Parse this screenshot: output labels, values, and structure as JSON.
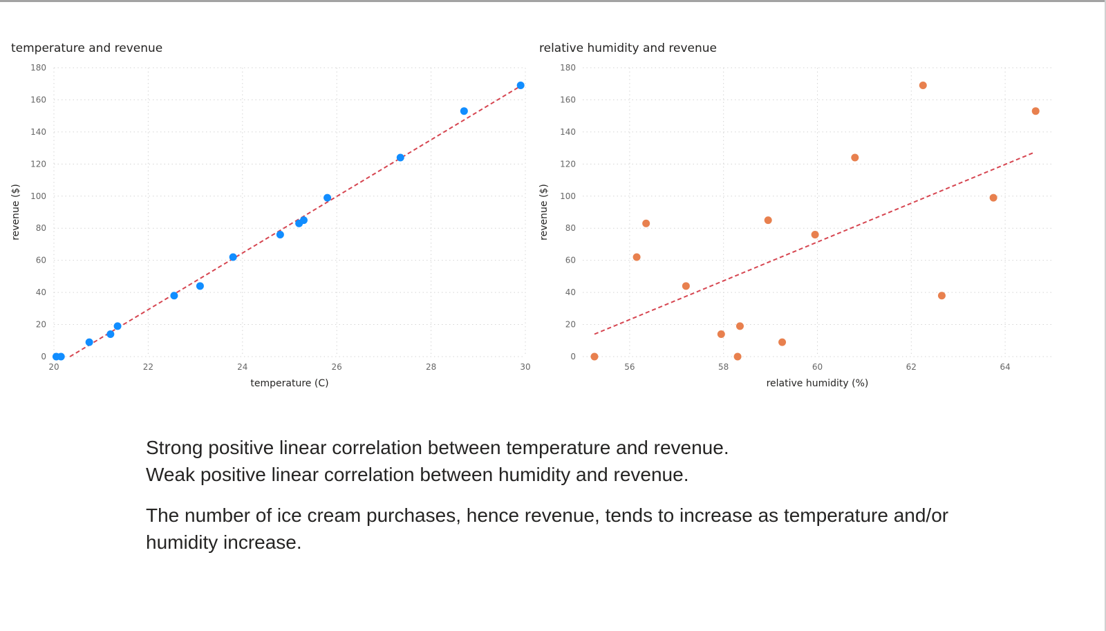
{
  "chart_data": [
    {
      "type": "scatter",
      "title": "temperature and revenue",
      "xlabel": "temperature (C)",
      "ylabel": "revenue ($)",
      "xlim": [
        20,
        30
      ],
      "ylim": [
        0,
        180
      ],
      "xticks": [
        20,
        22,
        24,
        26,
        28,
        30
      ],
      "yticks": [
        0,
        20,
        40,
        60,
        80,
        100,
        120,
        140,
        160,
        180
      ],
      "grid": true,
      "marker_color": "#118DFF",
      "trend_color": "#D64550",
      "trendline": [
        [
          20,
          -6
        ],
        [
          29.95,
          169.5
        ]
      ],
      "points": [
        {
          "x": 20.05,
          "y": 0
        },
        {
          "x": 20.15,
          "y": 0
        },
        {
          "x": 20.75,
          "y": 9
        },
        {
          "x": 21.2,
          "y": 14
        },
        {
          "x": 21.35,
          "y": 19
        },
        {
          "x": 22.55,
          "y": 38
        },
        {
          "x": 23.1,
          "y": 44
        },
        {
          "x": 23.8,
          "y": 62
        },
        {
          "x": 24.8,
          "y": 76
        },
        {
          "x": 25.2,
          "y": 83
        },
        {
          "x": 25.3,
          "y": 85
        },
        {
          "x": 25.8,
          "y": 99
        },
        {
          "x": 27.35,
          "y": 124
        },
        {
          "x": 28.7,
          "y": 153
        },
        {
          "x": 29.9,
          "y": 169
        }
      ]
    },
    {
      "type": "scatter",
      "title": "relative humidity and revenue",
      "xlabel": "relative humidity (%)",
      "ylabel": "revenue ($)",
      "xlim": [
        55.0,
        65.0
      ],
      "ylim": [
        0,
        180
      ],
      "xticks": [
        56,
        58,
        60,
        62,
        64
      ],
      "yticks": [
        0,
        20,
        40,
        60,
        80,
        100,
        120,
        140,
        160,
        180
      ],
      "grid": true,
      "marker_color": "#E8804E",
      "trend_color": "#D64550",
      "trendline": [
        [
          55.25,
          14
        ],
        [
          64.6,
          127
        ]
      ],
      "points": [
        {
          "x": 55.25,
          "y": 0
        },
        {
          "x": 56.15,
          "y": 62
        },
        {
          "x": 56.35,
          "y": 83
        },
        {
          "x": 57.2,
          "y": 44
        },
        {
          "x": 57.95,
          "y": 14
        },
        {
          "x": 58.3,
          "y": 0
        },
        {
          "x": 58.35,
          "y": 19
        },
        {
          "x": 58.95,
          "y": 85
        },
        {
          "x": 59.25,
          "y": 9
        },
        {
          "x": 59.95,
          "y": 76
        },
        {
          "x": 60.8,
          "y": 124
        },
        {
          "x": 62.25,
          "y": 169
        },
        {
          "x": 62.65,
          "y": 38
        },
        {
          "x": 63.75,
          "y": 99
        },
        {
          "x": 64.65,
          "y": 153
        }
      ]
    }
  ],
  "notes": {
    "line1": "Strong positive linear correlation between temperature and revenue.",
    "line2": "Weak positive linear correlation between humidity and revenue.",
    "line3": "The number of ice cream purchases, hence revenue, tends to increase as temperature and/or humidity increase."
  }
}
